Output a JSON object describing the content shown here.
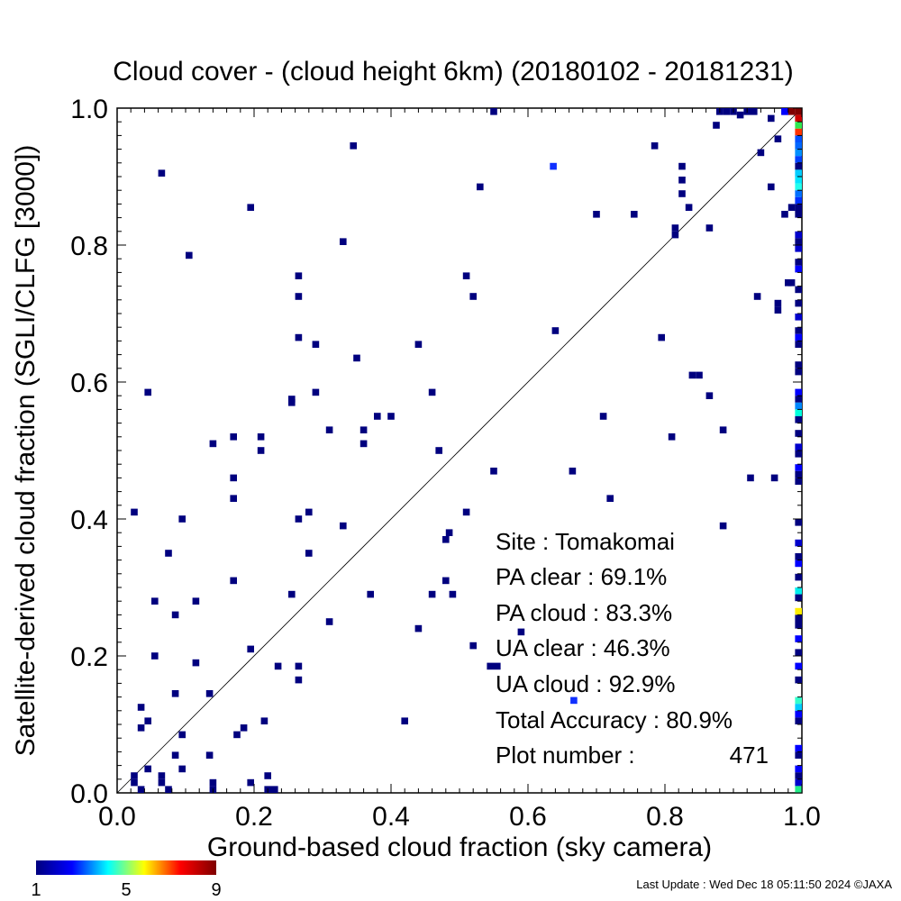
{
  "chart_data": {
    "type": "heatmap",
    "title": "Cloud cover - (cloud height 6km)  (20180102 - 20181231)",
    "xlabel": "Ground-based cloud fraction (sky camera)",
    "ylabel": "Satellite-derived cloud fraction (SGLI/CLFG [3000])",
    "xlim": [
      0.0,
      1.0
    ],
    "ylim": [
      0.0,
      1.0
    ],
    "xticks": [
      "0.0",
      "0.2",
      "0.4",
      "0.6",
      "0.8",
      "1.0"
    ],
    "yticks": [
      "0.0",
      "0.2",
      "0.4",
      "0.6",
      "0.8",
      "1.0"
    ],
    "diagonal": true,
    "grid": false,
    "colorbar": {
      "min": 1,
      "max": 9,
      "tick_labels": [
        "1",
        "5",
        "9"
      ],
      "colors": [
        "#00007f",
        "#0000ff",
        "#00ffff",
        "#ffff00",
        "#ff0000",
        "#7f0000"
      ]
    },
    "points": [
      [
        0.065,
        0.905
      ],
      [
        0.105,
        0.785
      ],
      [
        0.195,
        0.855
      ],
      [
        0.345,
        0.945
      ],
      [
        0.33,
        0.805
      ],
      [
        0.265,
        0.755
      ],
      [
        0.265,
        0.725
      ],
      [
        0.265,
        0.665
      ],
      [
        0.29,
        0.655
      ],
      [
        0.35,
        0.635
      ],
      [
        0.44,
        0.655
      ],
      [
        0.255,
        0.575
      ],
      [
        0.255,
        0.57
      ],
      [
        0.29,
        0.585
      ],
      [
        0.045,
        0.585
      ],
      [
        0.14,
        0.51
      ],
      [
        0.17,
        0.52
      ],
      [
        0.21,
        0.52
      ],
      [
        0.21,
        0.5
      ],
      [
        0.17,
        0.46
      ],
      [
        0.17,
        0.43
      ],
      [
        0.31,
        0.53
      ],
      [
        0.36,
        0.53
      ],
      [
        0.36,
        0.51
      ],
      [
        0.38,
        0.55
      ],
      [
        0.4,
        0.55
      ],
      [
        0.46,
        0.585
      ],
      [
        0.47,
        0.5
      ],
      [
        0.025,
        0.41
      ],
      [
        0.095,
        0.4
      ],
      [
        0.265,
        0.4
      ],
      [
        0.28,
        0.41
      ],
      [
        0.33,
        0.39
      ],
      [
        0.075,
        0.35
      ],
      [
        0.28,
        0.35
      ],
      [
        0.17,
        0.31
      ],
      [
        0.055,
        0.28
      ],
      [
        0.115,
        0.28
      ],
      [
        0.085,
        0.26
      ],
      [
        0.255,
        0.29
      ],
      [
        0.37,
        0.29
      ],
      [
        0.31,
        0.25
      ],
      [
        0.055,
        0.2
      ],
      [
        0.115,
        0.19
      ],
      [
        0.195,
        0.21
      ],
      [
        0.235,
        0.185
      ],
      [
        0.265,
        0.185
      ],
      [
        0.265,
        0.165
      ],
      [
        0.085,
        0.145
      ],
      [
        0.135,
        0.145
      ],
      [
        0.035,
        0.125
      ],
      [
        0.035,
        0.095
      ],
      [
        0.045,
        0.105
      ],
      [
        0.095,
        0.085
      ],
      [
        0.175,
        0.085
      ],
      [
        0.185,
        0.095
      ],
      [
        0.215,
        0.105
      ],
      [
        0.085,
        0.055
      ],
      [
        0.135,
        0.055
      ],
      [
        0.095,
        0.035
      ],
      [
        0.045,
        0.035
      ],
      [
        0.025,
        0.025
      ],
      [
        0.025,
        0.015
      ],
      [
        0.065,
        0.025
      ],
      [
        0.065,
        0.015
      ],
      [
        0.035,
        0.005
      ],
      [
        0.075,
        0.005
      ],
      [
        0.14,
        0.015
      ],
      [
        0.14,
        0.005
      ],
      [
        0.195,
        0.015
      ],
      [
        0.22,
        0.025
      ],
      [
        0.22,
        0.005
      ],
      [
        0.23,
        0.005
      ],
      [
        0.55,
        0.995
      ],
      [
        0.53,
        0.885
      ],
      [
        0.51,
        0.755
      ],
      [
        0.52,
        0.725
      ],
      [
        0.64,
        0.675
      ],
      [
        0.7,
        0.845
      ],
      [
        0.755,
        0.845
      ],
      [
        0.785,
        0.945
      ],
      [
        0.815,
        0.825
      ],
      [
        0.815,
        0.815
      ],
      [
        0.825,
        0.875
      ],
      [
        0.825,
        0.895
      ],
      [
        0.825,
        0.915
      ],
      [
        0.835,
        0.855
      ],
      [
        0.865,
        0.825
      ],
      [
        0.875,
        0.975
      ],
      [
        0.795,
        0.665
      ],
      [
        0.84,
        0.61
      ],
      [
        0.85,
        0.61
      ],
      [
        0.865,
        0.58
      ],
      [
        0.71,
        0.55
      ],
      [
        0.81,
        0.52
      ],
      [
        0.885,
        0.53
      ],
      [
        0.665,
        0.47
      ],
      [
        0.55,
        0.47
      ],
      [
        0.925,
        0.46
      ],
      [
        0.96,
        0.46
      ],
      [
        0.72,
        0.43
      ],
      [
        0.51,
        0.41
      ],
      [
        0.885,
        0.39
      ],
      [
        0.48,
        0.37
      ],
      [
        0.485,
        0.38
      ],
      [
        0.48,
        0.31
      ],
      [
        0.46,
        0.29
      ],
      [
        0.49,
        0.29
      ],
      [
        0.44,
        0.24
      ],
      [
        0.52,
        0.215
      ],
      [
        0.545,
        0.185
      ],
      [
        0.555,
        0.185
      ],
      [
        0.59,
        0.235
      ],
      [
        0.42,
        0.105
      ],
      [
        0.935,
        0.725
      ],
      [
        0.965,
        0.715
      ],
      [
        0.965,
        0.705
      ],
      [
        0.98,
        0.745
      ],
      [
        0.985,
        0.745
      ],
      [
        0.975,
        0.845
      ],
      [
        0.985,
        0.855
      ],
      [
        0.94,
        0.935
      ],
      [
        0.955,
        0.885
      ],
      [
        0.965,
        0.955
      ],
      [
        0.955,
        0.985
      ],
      [
        0.975,
        0.995
      ],
      [
        0.88,
        0.995
      ],
      [
        0.89,
        0.995
      ],
      [
        0.9,
        0.995
      ],
      [
        0.91,
        0.99
      ],
      [
        0.92,
        0.995
      ],
      [
        0.93,
        0.995
      ]
    ],
    "bright_points": [
      [
        0.637,
        0.915
      ],
      [
        0.667,
        0.135
      ]
    ],
    "right_edge_column": [
      {
        "y": 0.995,
        "color": "#7f0000"
      },
      {
        "y": 0.985,
        "color": "#cc0000"
      },
      {
        "y": 0.975,
        "color": "#2ee84f"
      },
      {
        "y": 0.965,
        "color": "#ff3300"
      },
      {
        "y": 0.955,
        "color": "#0050ff"
      },
      {
        "y": 0.945,
        "color": "#0066ff"
      },
      {
        "y": 0.935,
        "color": "#0090ff"
      },
      {
        "y": 0.925,
        "color": "#0040ff"
      },
      {
        "y": 0.915,
        "color": "#00007f"
      },
      {
        "y": 0.905,
        "color": "#00ccff"
      },
      {
        "y": 0.895,
        "color": "#00e5ff"
      },
      {
        "y": 0.885,
        "color": "#22ffee"
      },
      {
        "y": 0.875,
        "color": "#0070ff"
      },
      {
        "y": 0.865,
        "color": "#0030ff"
      },
      {
        "y": 0.855,
        "color": "#00007f"
      },
      {
        "y": 0.845,
        "color": "#00007f"
      },
      {
        "y": 0.815,
        "color": "#0000cc"
      },
      {
        "y": 0.805,
        "color": "#00007f"
      },
      {
        "y": 0.795,
        "color": "#0000cc"
      },
      {
        "y": 0.775,
        "color": "#00007f"
      },
      {
        "y": 0.765,
        "color": "#0000ff"
      },
      {
        "y": 0.735,
        "color": "#00007f"
      },
      {
        "y": 0.715,
        "color": "#00007f"
      },
      {
        "y": 0.695,
        "color": "#0000cc"
      },
      {
        "y": 0.675,
        "color": "#00007f"
      },
      {
        "y": 0.665,
        "color": "#0000ff"
      },
      {
        "y": 0.655,
        "color": "#00007f"
      },
      {
        "y": 0.625,
        "color": "#00007f"
      },
      {
        "y": 0.615,
        "color": "#00007f"
      },
      {
        "y": 0.585,
        "color": "#0000ff"
      },
      {
        "y": 0.575,
        "color": "#00007f"
      },
      {
        "y": 0.565,
        "color": "#0088ff"
      },
      {
        "y": 0.555,
        "color": "#00ffdd"
      },
      {
        "y": 0.545,
        "color": "#00007f"
      },
      {
        "y": 0.525,
        "color": "#00007f"
      },
      {
        "y": 0.505,
        "color": "#0000cc"
      },
      {
        "y": 0.495,
        "color": "#00007f"
      },
      {
        "y": 0.475,
        "color": "#0000ff"
      },
      {
        "y": 0.465,
        "color": "#00007f"
      },
      {
        "y": 0.455,
        "color": "#00007f"
      },
      {
        "y": 0.395,
        "color": "#00007f"
      },
      {
        "y": 0.365,
        "color": "#0000cc"
      },
      {
        "y": 0.345,
        "color": "#00007f"
      },
      {
        "y": 0.335,
        "color": "#0000ff"
      },
      {
        "y": 0.315,
        "color": "#00007f"
      },
      {
        "y": 0.295,
        "color": "#00eeee"
      },
      {
        "y": 0.285,
        "color": "#00007f"
      },
      {
        "y": 0.265,
        "color": "#ffee00"
      },
      {
        "y": 0.255,
        "color": "#00007f"
      },
      {
        "y": 0.245,
        "color": "#00007f"
      },
      {
        "y": 0.225,
        "color": "#0000ff"
      },
      {
        "y": 0.205,
        "color": "#00007f"
      },
      {
        "y": 0.185,
        "color": "#0000ff"
      },
      {
        "y": 0.165,
        "color": "#00007f"
      },
      {
        "y": 0.135,
        "color": "#33ffcc"
      },
      {
        "y": 0.125,
        "color": "#00ccff"
      },
      {
        "y": 0.115,
        "color": "#0000ff"
      },
      {
        "y": 0.105,
        "color": "#00007f"
      },
      {
        "y": 0.065,
        "color": "#0000ff"
      },
      {
        "y": 0.055,
        "color": "#00007f"
      },
      {
        "y": 0.035,
        "color": "#0000ff"
      },
      {
        "y": 0.025,
        "color": "#00007f"
      },
      {
        "y": 0.015,
        "color": "#0000cc"
      },
      {
        "y": 0.005,
        "color": "#22ee88"
      }
    ],
    "top_right_corner": [
      {
        "x": 0.985,
        "color": "#7f0000"
      },
      {
        "x": 0.975,
        "color": "#0000ff"
      }
    ]
  },
  "stats": {
    "site_label": "Site : Tomakomai",
    "pa_clear_label": "PA clear :  69.1%",
    "pa_cloud_label": "PA cloud :  83.3%",
    "ua_clear_label": "UA clear :  46.3%",
    "ua_cloud_label": "UA cloud :  92.9%",
    "total_accuracy_label": "Total Accuracy :  80.9%",
    "plot_number_label": "Plot number :",
    "plot_number_value": "471"
  },
  "footer": {
    "last_update": "Last Update : Wed Dec 18 05:11:50 2024  ©JAXA"
  }
}
